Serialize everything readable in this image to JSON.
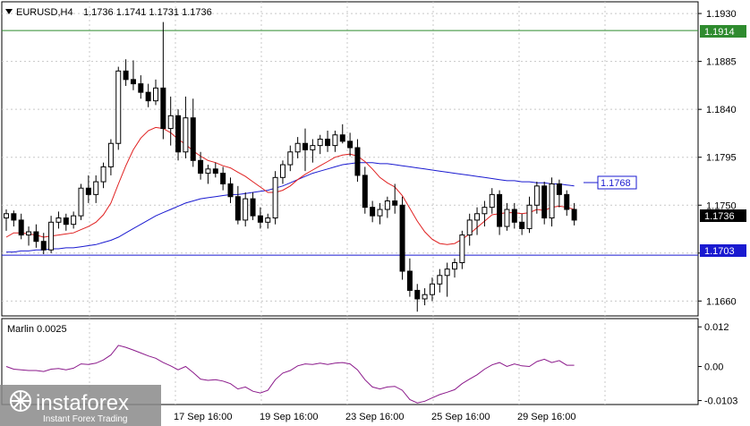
{
  "symbol": {
    "name": "EURUSD,H4",
    "ohlc": "1.1736 1.1741 1.1731 1.1736"
  },
  "indicator": {
    "name": "Marlin 0.0025"
  },
  "watermark": {
    "brand": "instaforex",
    "tagline": "Instant Forex Trading"
  },
  "colors": {
    "background": "#ffffff",
    "grid": "#c8c8c8",
    "ma_fast": "#e02020",
    "ma_slow": "#1a1ad0",
    "hline_green": "#2e8b2e",
    "hline_blue": "#1a1ad0",
    "oscillator": "#8b1a8b",
    "candle": "#000000"
  },
  "price_labels": {
    "green_level": "1.1914",
    "blue_level": "1.1703",
    "ma_slow_level": "1.1768",
    "current": "1.1736"
  },
  "chart_data": [
    {
      "type": "candlestick",
      "title": "EURUSD,H4",
      "ylim": [
        1.1646,
        1.1941
      ],
      "y_ticks": [
        "1.1930",
        "1.1885",
        "1.1840",
        "1.1795",
        "1.1750",
        "1.1705",
        "1.1660"
      ],
      "x_ticks": [
        "17 Sep 16:00",
        "19 Sep 16:00",
        "23 Sep 16:00",
        "25 Sep 16:00",
        "29 Sep 16:00"
      ],
      "grid": true,
      "horizontal_lines": [
        {
          "value": 1.1914,
          "color": "green"
        },
        {
          "value": 1.1703,
          "color": "blue"
        }
      ],
      "candles": [
        [
          1.1738,
          1.1746,
          1.1726,
          1.1742
        ],
        [
          1.1742,
          1.1745,
          1.173,
          1.1736
        ],
        [
          1.1736,
          1.1742,
          1.1718,
          1.1722
        ],
        [
          1.1722,
          1.173,
          1.1712,
          1.1725
        ],
        [
          1.1725,
          1.1732,
          1.171,
          1.1716
        ],
        [
          1.1716,
          1.1724,
          1.1704,
          1.1708
        ],
        [
          1.1708,
          1.174,
          1.1705,
          1.1734
        ],
        [
          1.1734,
          1.1744,
          1.1728,
          1.1738
        ],
        [
          1.1738,
          1.1742,
          1.1726,
          1.1732
        ],
        [
          1.1732,
          1.1744,
          1.1728,
          1.174
        ],
        [
          1.174,
          1.177,
          1.1736,
          1.1766
        ],
        [
          1.1766,
          1.1778,
          1.1752,
          1.176
        ],
        [
          1.176,
          1.1778,
          1.1752,
          1.1772
        ],
        [
          1.1772,
          1.179,
          1.1766,
          1.1786
        ],
        [
          1.1786,
          1.1812,
          1.1778,
          1.1808
        ],
        [
          1.1808,
          1.188,
          1.1802,
          1.1876
        ],
        [
          1.1876,
          1.1887,
          1.1862,
          1.1868
        ],
        [
          1.1868,
          1.1886,
          1.1858,
          1.1864
        ],
        [
          1.1864,
          1.1872,
          1.185,
          1.1856
        ],
        [
          1.1856,
          1.1864,
          1.1842,
          1.1848
        ],
        [
          1.1848,
          1.1868,
          1.1844,
          1.186
        ],
        [
          1.186,
          1.1922,
          1.1812,
          1.1822
        ],
        [
          1.1822,
          1.1852,
          1.1806,
          1.1834
        ],
        [
          1.1834,
          1.184,
          1.1792,
          1.18
        ],
        [
          1.18,
          1.1852,
          1.1794,
          1.1832
        ],
        [
          1.1832,
          1.185,
          1.1786,
          1.1792
        ],
        [
          1.1792,
          1.18,
          1.1774,
          1.178
        ],
        [
          1.178,
          1.1788,
          1.177,
          1.1784
        ],
        [
          1.1784,
          1.179,
          1.1776,
          1.178
        ],
        [
          1.178,
          1.1786,
          1.1764,
          1.177
        ],
        [
          1.177,
          1.1776,
          1.1752,
          1.1758
        ],
        [
          1.1758,
          1.1768,
          1.1732,
          1.1736
        ],
        [
          1.1736,
          1.1762,
          1.173,
          1.1756
        ],
        [
          1.1756,
          1.1762,
          1.1736,
          1.174
        ],
        [
          1.174,
          1.1748,
          1.1728,
          1.1734
        ],
        [
          1.1734,
          1.1742,
          1.1728,
          1.1738
        ],
        [
          1.1738,
          1.1782,
          1.1732,
          1.1776
        ],
        [
          1.1776,
          1.1792,
          1.177,
          1.1788
        ],
        [
          1.1788,
          1.1806,
          1.1782,
          1.18
        ],
        [
          1.18,
          1.1814,
          1.1794,
          1.1808
        ],
        [
          1.1808,
          1.1822,
          1.1782,
          1.1802
        ],
        [
          1.1802,
          1.1812,
          1.179,
          1.1806
        ],
        [
          1.1806,
          1.1816,
          1.1798,
          1.1812
        ],
        [
          1.1812,
          1.182,
          1.18,
          1.1806
        ],
        [
          1.1806,
          1.182,
          1.18,
          1.1816
        ],
        [
          1.1816,
          1.1826,
          1.1808,
          1.181
        ],
        [
          1.181,
          1.1818,
          1.1796,
          1.1804
        ],
        [
          1.1804,
          1.1812,
          1.1772,
          1.1778
        ],
        [
          1.1778,
          1.1786,
          1.1742,
          1.1748
        ],
        [
          1.1748,
          1.1754,
          1.1734,
          1.174
        ],
        [
          1.174,
          1.1752,
          1.1732,
          1.1746
        ],
        [
          1.1746,
          1.1758,
          1.1738,
          1.1754
        ],
        [
          1.1754,
          1.177,
          1.1742,
          1.175
        ],
        [
          1.175,
          1.1758,
          1.168,
          1.1688
        ],
        [
          1.1688,
          1.17,
          1.1664,
          1.167
        ],
        [
          1.167,
          1.1676,
          1.165,
          1.1662
        ],
        [
          1.1662,
          1.1672,
          1.1656,
          1.1666
        ],
        [
          1.1666,
          1.1682,
          1.166,
          1.1676
        ],
        [
          1.1676,
          1.169,
          1.1668,
          1.1684
        ],
        [
          1.1684,
          1.1696,
          1.1664,
          1.169
        ],
        [
          1.169,
          1.17,
          1.1682,
          1.1696
        ],
        [
          1.1696,
          1.1726,
          1.169,
          1.1722
        ],
        [
          1.1722,
          1.1742,
          1.1712,
          1.1736
        ],
        [
          1.1736,
          1.1748,
          1.1722,
          1.1742
        ],
        [
          1.1742,
          1.1754,
          1.173,
          1.1748
        ],
        [
          1.1748,
          1.1766,
          1.1742,
          1.176
        ],
        [
          1.176,
          1.1764,
          1.1722,
          1.173
        ],
        [
          1.173,
          1.1752,
          1.1726,
          1.1746
        ],
        [
          1.1746,
          1.1752,
          1.1728,
          1.1734
        ],
        [
          1.1734,
          1.1742,
          1.1722,
          1.1728
        ],
        [
          1.1728,
          1.1758,
          1.1724,
          1.175
        ],
        [
          1.175,
          1.1772,
          1.1742,
          1.1768
        ],
        [
          1.1768,
          1.1772,
          1.1732,
          1.1738
        ],
        [
          1.1738,
          1.1776,
          1.173,
          1.177
        ],
        [
          1.177,
          1.1774,
          1.1748,
          1.176
        ],
        [
          1.176,
          1.1764,
          1.174,
          1.1746
        ],
        [
          1.1746,
          1.1752,
          1.1731,
          1.1736
        ]
      ],
      "ma_fast": [
        1.172,
        1.1724,
        1.1724,
        1.1723,
        1.1722,
        1.172,
        1.1721,
        1.1722,
        1.1723,
        1.1724,
        1.1727,
        1.173,
        1.1734,
        1.1741,
        1.1752,
        1.177,
        1.1787,
        1.1802,
        1.1813,
        1.182,
        1.1823,
        1.1822,
        1.1818,
        1.1812,
        1.1807,
        1.1801,
        1.1796,
        1.1792,
        1.179,
        1.1787,
        1.1785,
        1.1781,
        1.1777,
        1.1772,
        1.1767,
        1.1762,
        1.1762,
        1.1764,
        1.1768,
        1.1774,
        1.1779,
        1.1783,
        1.1787,
        1.1791,
        1.1795,
        1.1797,
        1.1798,
        1.1796,
        1.1791,
        1.1784,
        1.1776,
        1.1771,
        1.1767,
        1.1759,
        1.1747,
        1.1735,
        1.1725,
        1.1718,
        1.1714,
        1.1713,
        1.1714,
        1.1718,
        1.1723,
        1.1729,
        1.1735,
        1.1741,
        1.1742,
        1.1743,
        1.1743,
        1.1742,
        1.1743,
        1.1746,
        1.1745,
        1.1748,
        1.1749,
        1.1748,
        1.1746
      ],
      "ma_slow": [
        1.1706,
        1.1706,
        1.1707,
        1.1707,
        1.1708,
        1.1708,
        1.1709,
        1.1709,
        1.171,
        1.171,
        1.1711,
        1.1712,
        1.1713,
        1.1715,
        1.1717,
        1.172,
        1.1724,
        1.1728,
        1.1732,
        1.1736,
        1.174,
        1.1743,
        1.1746,
        1.1749,
        1.1752,
        1.1754,
        1.1756,
        1.1757,
        1.1758,
        1.1759,
        1.176,
        1.176,
        1.1761,
        1.1762,
        1.1763,
        1.1764,
        1.1766,
        1.1768,
        1.1771,
        1.1774,
        1.1777,
        1.178,
        1.1782,
        1.1784,
        1.1786,
        1.1788,
        1.1789,
        1.179,
        1.179,
        1.179,
        1.1789,
        1.1789,
        1.1788,
        1.1787,
        1.1786,
        1.1785,
        1.1784,
        1.1783,
        1.1782,
        1.1781,
        1.178,
        1.1779,
        1.1778,
        1.1777,
        1.1776,
        1.1775,
        1.1774,
        1.1773,
        1.1773,
        1.1772,
        1.1772,
        1.1771,
        1.1771,
        1.177,
        1.177,
        1.1769,
        1.1768
      ]
    },
    {
      "type": "line",
      "title": "Marlin 0.0025",
      "ylim": [
        -0.0115,
        0.0145
      ],
      "y_ticks": [
        "0.012",
        "0.00",
        "-0.0103"
      ],
      "series": [
        {
          "values": [
            0.0,
            -0.0008,
            -0.001,
            -0.0012,
            -0.0012,
            -0.0015,
            -0.0008,
            -0.0006,
            -0.001,
            -0.0005,
            0.0008,
            0.0006,
            0.001,
            0.002,
            0.0035,
            0.0064,
            0.0058,
            0.005,
            0.0041,
            0.0032,
            0.0025,
            0.0012,
            0.0002,
            -0.001,
            0.0,
            -0.0018,
            -0.0038,
            -0.0042,
            -0.004,
            -0.0044,
            -0.0052,
            -0.0068,
            -0.0062,
            -0.0075,
            -0.008,
            -0.0072,
            -0.004,
            -0.002,
            -0.0012,
            0.0002,
            0.0008,
            0.0006,
            0.001,
            0.0006,
            0.001,
            0.0012,
            0.0008,
            -0.001,
            -0.004,
            -0.0062,
            -0.0068,
            -0.0062,
            -0.006,
            -0.0072,
            -0.01,
            -0.011,
            -0.0105,
            -0.0095,
            -0.0085,
            -0.0078,
            -0.007,
            -0.0052,
            -0.0038,
            -0.0025,
            -0.0008,
            0.0005,
            0.0012,
            0.0,
            0.0008,
            0.0002,
            0.0,
            0.0015,
            0.0022,
            0.0012,
            0.0018,
            0.0004,
            0.0004
          ]
        }
      ]
    }
  ]
}
